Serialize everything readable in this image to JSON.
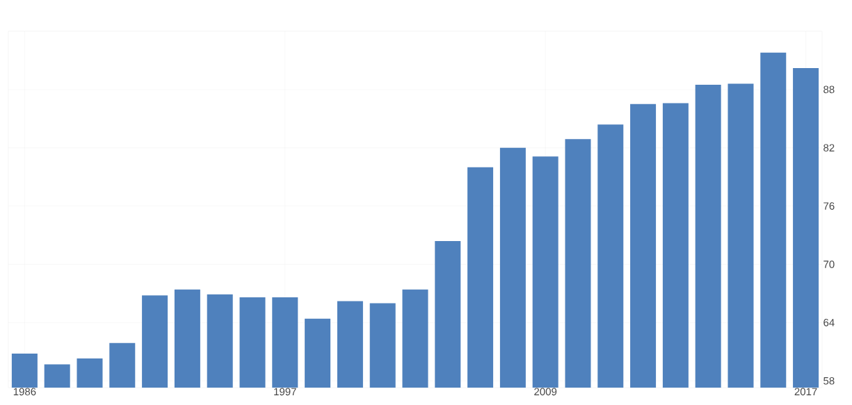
{
  "chart_data": {
    "type": "bar",
    "categories": [
      "1986",
      null,
      null,
      null,
      null,
      null,
      null,
      null,
      "1997",
      null,
      null,
      null,
      null,
      null,
      null,
      null,
      "2009",
      null,
      null,
      null,
      null,
      null,
      null,
      null,
      "2017"
    ],
    "values": [
      60.8,
      59.7,
      60.3,
      61.9,
      66.8,
      67.4,
      66.9,
      66.6,
      66.6,
      64.4,
      66.2,
      66.0,
      67.4,
      72.4,
      80.0,
      82.0,
      81.1,
      82.9,
      84.4,
      86.5,
      86.6,
      88.5,
      88.6,
      91.8,
      90.2
    ],
    "color": "#4f81bd",
    "ylim": [
      57.3,
      94
    ],
    "yticks": [
      58,
      64,
      70,
      76,
      82,
      88
    ],
    "grid": true
  }
}
